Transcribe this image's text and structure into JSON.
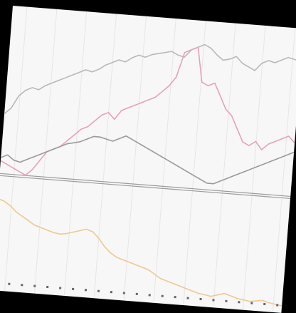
{
  "chart_data": {
    "type": "line",
    "title": "",
    "xlabel": "",
    "ylabel": "",
    "x": [
      0,
      1,
      2,
      3,
      4,
      5,
      6,
      7,
      8,
      9,
      10,
      11,
      12,
      13,
      14,
      15,
      16,
      17,
      18,
      19,
      20,
      21,
      22,
      23,
      24,
      25,
      26,
      27,
      28,
      29,
      30,
      31,
      32,
      33,
      34,
      35,
      36,
      37,
      38,
      39,
      40,
      41,
      42,
      43,
      44,
      45
    ],
    "x_ticks": [
      "",
      "",
      "",
      "",
      "",
      "",
      "",
      "",
      "",
      "",
      "",
      "",
      "",
      "",
      "",
      "",
      "",
      "",
      "",
      "",
      "",
      "",
      ""
    ],
    "y_range_top": [
      0,
      100
    ],
    "y_range_bottom": [
      0,
      100
    ],
    "grid": true,
    "panels": [
      "top",
      "bottom"
    ],
    "series": [
      {
        "panel": "top",
        "color": "#b8b8b8",
        "values": [
          40,
          44,
          52,
          56,
          58,
          57,
          60,
          62,
          64,
          66,
          68,
          70,
          72,
          71,
          73,
          76,
          78,
          80,
          79,
          82,
          84,
          83,
          85,
          86,
          87,
          88,
          86,
          85,
          90,
          92,
          94,
          92,
          88,
          85,
          86,
          88,
          84,
          82,
          80,
          85,
          87,
          86,
          88,
          90,
          89,
          88
        ]
      },
      {
        "panel": "top",
        "color": "#e6a2b6",
        "values": [
          10,
          8,
          6,
          4,
          2,
          6,
          12,
          18,
          20,
          22,
          26,
          30,
          34,
          36,
          40,
          44,
          46,
          42,
          48,
          50,
          52,
          54,
          56,
          58,
          62,
          66,
          72,
          88,
          90,
          92,
          70,
          68,
          70,
          62,
          54,
          50,
          42,
          34,
          32,
          35,
          30,
          34,
          36,
          38,
          40,
          36
        ]
      },
      {
        "panel": "top",
        "color": "#9a9a9a",
        "values": [
          12,
          14,
          11,
          10,
          12,
          14,
          16,
          18,
          20,
          22,
          24,
          25,
          26,
          28,
          30,
          30,
          29,
          28,
          30,
          32,
          30,
          28,
          26,
          24,
          22,
          20,
          18,
          16,
          14,
          12,
          10,
          8,
          6,
          6,
          8,
          10,
          12,
          14,
          16,
          18,
          20,
          22,
          24,
          26,
          28,
          30
        ]
      },
      {
        "panel": "bottom",
        "color": "#f0c890",
        "values": [
          86,
          84,
          80,
          74,
          70,
          66,
          62,
          60,
          58,
          56,
          55,
          56,
          58,
          60,
          62,
          60,
          54,
          46,
          40,
          36,
          34,
          32,
          30,
          28,
          26,
          22,
          18,
          16,
          14,
          12,
          10,
          8,
          6,
          5,
          4,
          6,
          8,
          6,
          4,
          3,
          2,
          3,
          4,
          2,
          1,
          0
        ]
      }
    ]
  }
}
